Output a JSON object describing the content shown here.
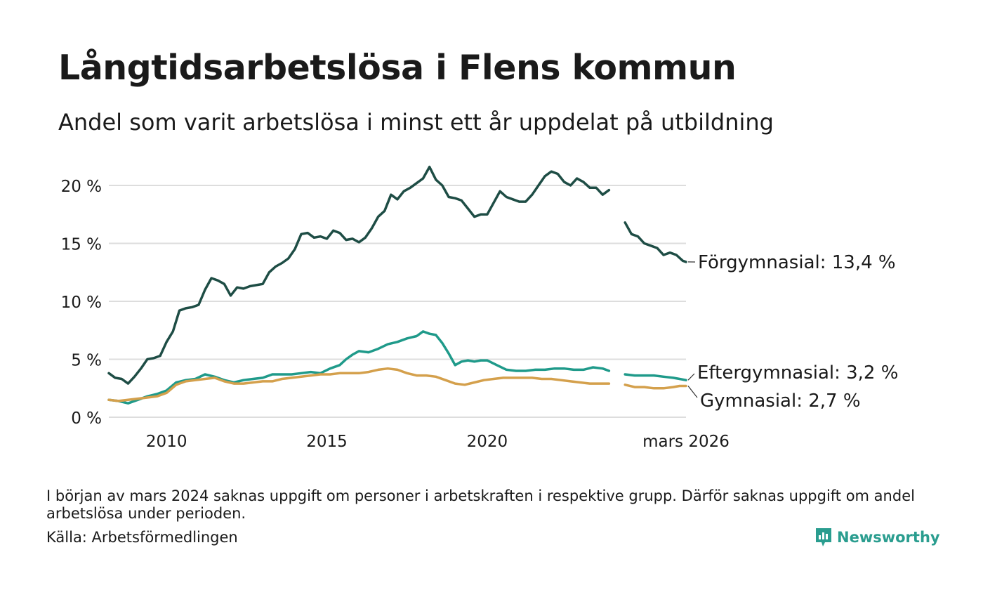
{
  "title": "Långtidsarbetslösa i Flens kommun",
  "subtitle": "Andel som varit arbetslösa i minst ett år uppdelat på utbildning",
  "note": "I början av mars 2024 saknas uppgift om personer i arbetskraften i respektive grupp. Därför saknas uppgift om andel arbetslösa under perioden.",
  "source": "Källa: Arbetsförmedlingen",
  "brand": "Newsworthy",
  "colors": {
    "forgymnasial": "#1e4d45",
    "eftergymnasial": "#1f9a8a",
    "gymnasial": "#d4a04c",
    "grid": "#dddddd",
    "brand": "#2a9d8f"
  },
  "chart_data": {
    "type": "line",
    "x_unit": "year",
    "xlim": [
      2008.2,
      2026.2
    ],
    "ylim": [
      0,
      22
    ],
    "y_ticks": [
      {
        "value": 0,
        "label": "0 %"
      },
      {
        "value": 5,
        "label": "5 %"
      },
      {
        "value": 10,
        "label": "10 %"
      },
      {
        "value": 15,
        "label": "15 %"
      },
      {
        "value": 20,
        "label": "20 %"
      }
    ],
    "x_ticks": [
      {
        "value": 2010,
        "label": "2010"
      },
      {
        "value": 2015,
        "label": "2015"
      },
      {
        "value": 2020,
        "label": "2020"
      },
      {
        "value": 2026.2,
        "label": "mars 2026"
      }
    ],
    "gap": [
      2023.9,
      2024.3
    ],
    "series": [
      {
        "name": "Förgymnasial",
        "end_label": "Förgymnasial: 13,4 %",
        "color_key": "forgymnasial",
        "points": [
          [
            2008.2,
            3.8
          ],
          [
            2008.4,
            3.4
          ],
          [
            2008.6,
            3.3
          ],
          [
            2008.8,
            2.9
          ],
          [
            2009.0,
            3.5
          ],
          [
            2009.2,
            4.2
          ],
          [
            2009.4,
            5.0
          ],
          [
            2009.6,
            5.1
          ],
          [
            2009.8,
            5.3
          ],
          [
            2010.0,
            6.5
          ],
          [
            2010.2,
            7.4
          ],
          [
            2010.4,
            9.2
          ],
          [
            2010.6,
            9.4
          ],
          [
            2010.8,
            9.5
          ],
          [
            2011.0,
            9.7
          ],
          [
            2011.2,
            11.0
          ],
          [
            2011.4,
            12.0
          ],
          [
            2011.6,
            11.8
          ],
          [
            2011.8,
            11.5
          ],
          [
            2012.0,
            10.5
          ],
          [
            2012.2,
            11.2
          ],
          [
            2012.4,
            11.1
          ],
          [
            2012.6,
            11.3
          ],
          [
            2012.8,
            11.4
          ],
          [
            2013.0,
            11.5
          ],
          [
            2013.2,
            12.5
          ],
          [
            2013.4,
            13.0
          ],
          [
            2013.6,
            13.3
          ],
          [
            2013.8,
            13.7
          ],
          [
            2014.0,
            14.5
          ],
          [
            2014.2,
            15.8
          ],
          [
            2014.4,
            15.9
          ],
          [
            2014.6,
            15.5
          ],
          [
            2014.8,
            15.6
          ],
          [
            2015.0,
            15.4
          ],
          [
            2015.2,
            16.1
          ],
          [
            2015.4,
            15.9
          ],
          [
            2015.6,
            15.3
          ],
          [
            2015.8,
            15.4
          ],
          [
            2016.0,
            15.1
          ],
          [
            2016.2,
            15.5
          ],
          [
            2016.4,
            16.3
          ],
          [
            2016.6,
            17.3
          ],
          [
            2016.8,
            17.8
          ],
          [
            2017.0,
            19.2
          ],
          [
            2017.2,
            18.8
          ],
          [
            2017.4,
            19.5
          ],
          [
            2017.6,
            19.8
          ],
          [
            2017.8,
            20.2
          ],
          [
            2018.0,
            20.6
          ],
          [
            2018.2,
            21.6
          ],
          [
            2018.4,
            20.5
          ],
          [
            2018.6,
            20.0
          ],
          [
            2018.8,
            19.0
          ],
          [
            2019.0,
            18.9
          ],
          [
            2019.2,
            18.7
          ],
          [
            2019.4,
            18.0
          ],
          [
            2019.6,
            17.3
          ],
          [
            2019.8,
            17.5
          ],
          [
            2020.0,
            17.5
          ],
          [
            2020.2,
            18.5
          ],
          [
            2020.4,
            19.5
          ],
          [
            2020.6,
            19.0
          ],
          [
            2020.8,
            18.8
          ],
          [
            2021.0,
            18.6
          ],
          [
            2021.2,
            18.6
          ],
          [
            2021.4,
            19.2
          ],
          [
            2021.6,
            20.0
          ],
          [
            2021.8,
            20.8
          ],
          [
            2022.0,
            21.2
          ],
          [
            2022.2,
            21.0
          ],
          [
            2022.4,
            20.3
          ],
          [
            2022.6,
            20.0
          ],
          [
            2022.8,
            20.6
          ],
          [
            2023.0,
            20.3
          ],
          [
            2023.2,
            19.8
          ],
          [
            2023.4,
            19.8
          ],
          [
            2023.6,
            19.2
          ],
          [
            2023.8,
            19.6
          ],
          null,
          [
            2024.3,
            16.8
          ],
          [
            2024.5,
            15.8
          ],
          [
            2024.7,
            15.6
          ],
          [
            2024.9,
            15.0
          ],
          [
            2025.1,
            14.8
          ],
          [
            2025.3,
            14.6
          ],
          [
            2025.5,
            14.0
          ],
          [
            2025.7,
            14.2
          ],
          [
            2025.9,
            14.0
          ],
          [
            2026.1,
            13.5
          ],
          [
            2026.2,
            13.4
          ]
        ]
      },
      {
        "name": "Eftergymnasial",
        "end_label": "Eftergymnasial:  3,2 %",
        "color_key": "eftergymnasial",
        "points": [
          [
            2008.2,
            1.5
          ],
          [
            2008.5,
            1.4
          ],
          [
            2008.8,
            1.2
          ],
          [
            2009.1,
            1.5
          ],
          [
            2009.4,
            1.8
          ],
          [
            2009.7,
            2.0
          ],
          [
            2010.0,
            2.3
          ],
          [
            2010.3,
            3.0
          ],
          [
            2010.6,
            3.2
          ],
          [
            2010.9,
            3.3
          ],
          [
            2011.2,
            3.7
          ],
          [
            2011.5,
            3.5
          ],
          [
            2011.8,
            3.2
          ],
          [
            2012.1,
            3.0
          ],
          [
            2012.4,
            3.2
          ],
          [
            2012.7,
            3.3
          ],
          [
            2013.0,
            3.4
          ],
          [
            2013.3,
            3.7
          ],
          [
            2013.6,
            3.7
          ],
          [
            2013.9,
            3.7
          ],
          [
            2014.2,
            3.8
          ],
          [
            2014.5,
            3.9
          ],
          [
            2014.8,
            3.8
          ],
          [
            2015.1,
            4.2
          ],
          [
            2015.4,
            4.5
          ],
          [
            2015.6,
            5.0
          ],
          [
            2015.8,
            5.4
          ],
          [
            2016.0,
            5.7
          ],
          [
            2016.3,
            5.6
          ],
          [
            2016.6,
            5.9
          ],
          [
            2016.9,
            6.3
          ],
          [
            2017.2,
            6.5
          ],
          [
            2017.5,
            6.8
          ],
          [
            2017.8,
            7.0
          ],
          [
            2018.0,
            7.4
          ],
          [
            2018.2,
            7.2
          ],
          [
            2018.4,
            7.1
          ],
          [
            2018.6,
            6.4
          ],
          [
            2018.8,
            5.5
          ],
          [
            2019.0,
            4.5
          ],
          [
            2019.2,
            4.8
          ],
          [
            2019.4,
            4.9
          ],
          [
            2019.6,
            4.8
          ],
          [
            2019.8,
            4.9
          ],
          [
            2020.0,
            4.9
          ],
          [
            2020.3,
            4.5
          ],
          [
            2020.6,
            4.1
          ],
          [
            2020.9,
            4.0
          ],
          [
            2021.2,
            4.0
          ],
          [
            2021.5,
            4.1
          ],
          [
            2021.8,
            4.1
          ],
          [
            2022.1,
            4.2
          ],
          [
            2022.4,
            4.2
          ],
          [
            2022.7,
            4.1
          ],
          [
            2023.0,
            4.1
          ],
          [
            2023.3,
            4.3
          ],
          [
            2023.6,
            4.2
          ],
          [
            2023.8,
            4.0
          ],
          null,
          [
            2024.3,
            3.7
          ],
          [
            2024.6,
            3.6
          ],
          [
            2024.9,
            3.6
          ],
          [
            2025.2,
            3.6
          ],
          [
            2025.5,
            3.5
          ],
          [
            2025.8,
            3.4
          ],
          [
            2026.0,
            3.3
          ],
          [
            2026.2,
            3.2
          ]
        ]
      },
      {
        "name": "Gymnasial",
        "end_label": "Gymnasial:  2,7 %",
        "color_key": "gymnasial",
        "points": [
          [
            2008.2,
            1.5
          ],
          [
            2008.5,
            1.4
          ],
          [
            2008.8,
            1.5
          ],
          [
            2009.1,
            1.6
          ],
          [
            2009.4,
            1.7
          ],
          [
            2009.7,
            1.8
          ],
          [
            2010.0,
            2.1
          ],
          [
            2010.3,
            2.8
          ],
          [
            2010.6,
            3.1
          ],
          [
            2010.9,
            3.2
          ],
          [
            2011.2,
            3.3
          ],
          [
            2011.5,
            3.4
          ],
          [
            2011.8,
            3.1
          ],
          [
            2012.1,
            2.9
          ],
          [
            2012.4,
            2.9
          ],
          [
            2012.7,
            3.0
          ],
          [
            2013.0,
            3.1
          ],
          [
            2013.3,
            3.1
          ],
          [
            2013.6,
            3.3
          ],
          [
            2013.9,
            3.4
          ],
          [
            2014.2,
            3.5
          ],
          [
            2014.5,
            3.6
          ],
          [
            2014.8,
            3.7
          ],
          [
            2015.1,
            3.7
          ],
          [
            2015.4,
            3.8
          ],
          [
            2015.7,
            3.8
          ],
          [
            2016.0,
            3.8
          ],
          [
            2016.3,
            3.9
          ],
          [
            2016.6,
            4.1
          ],
          [
            2016.9,
            4.2
          ],
          [
            2017.2,
            4.1
          ],
          [
            2017.5,
            3.8
          ],
          [
            2017.8,
            3.6
          ],
          [
            2018.1,
            3.6
          ],
          [
            2018.4,
            3.5
          ],
          [
            2018.7,
            3.2
          ],
          [
            2019.0,
            2.9
          ],
          [
            2019.3,
            2.8
          ],
          [
            2019.6,
            3.0
          ],
          [
            2019.9,
            3.2
          ],
          [
            2020.2,
            3.3
          ],
          [
            2020.5,
            3.4
          ],
          [
            2020.8,
            3.4
          ],
          [
            2021.1,
            3.4
          ],
          [
            2021.4,
            3.4
          ],
          [
            2021.7,
            3.3
          ],
          [
            2022.0,
            3.3
          ],
          [
            2022.3,
            3.2
          ],
          [
            2022.6,
            3.1
          ],
          [
            2022.9,
            3.0
          ],
          [
            2023.2,
            2.9
          ],
          [
            2023.5,
            2.9
          ],
          [
            2023.8,
            2.9
          ],
          null,
          [
            2024.3,
            2.8
          ],
          [
            2024.6,
            2.6
          ],
          [
            2024.9,
            2.6
          ],
          [
            2025.2,
            2.5
          ],
          [
            2025.5,
            2.5
          ],
          [
            2025.8,
            2.6
          ],
          [
            2026.0,
            2.7
          ],
          [
            2026.2,
            2.7
          ]
        ]
      }
    ]
  }
}
